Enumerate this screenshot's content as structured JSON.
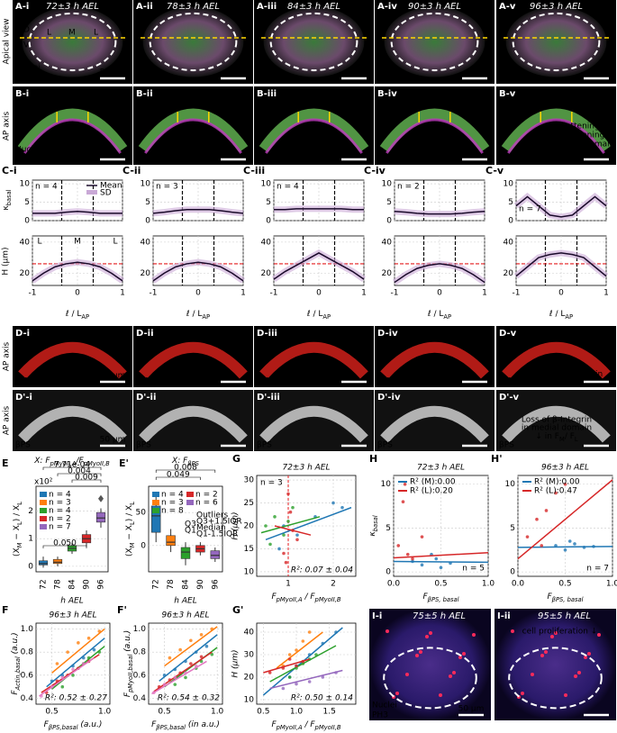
{
  "A": {
    "row_title": "Apical view",
    "stain": [
      "Nuclei",
      "Actin"
    ],
    "scale": "50 µm",
    "axis": [
      "D",
      "V"
    ],
    "regions": [
      "L",
      "M",
      "L"
    ],
    "panels": [
      {
        "label": "A-i",
        "time": "72±3 h AEL",
        "n": "n = 4"
      },
      {
        "label": "A-ii",
        "time": "78±3 h AEL",
        "n": "n = 3"
      },
      {
        "label": "A-iii",
        "time": "84±3 h AEL",
        "n": "n = 4"
      },
      {
        "label": "A-iv",
        "time": "90±3 h AEL",
        "n": "n = 2"
      },
      {
        "label": "A-v",
        "time": "96±3 h AEL",
        "n": "n = 7"
      }
    ]
  },
  "B": {
    "row_title": "AP axis",
    "stain": [
      "Nuclei",
      "Actin"
    ],
    "regions": [
      "L",
      "M",
      "L"
    ],
    "note": [
      "Flattening",
      "& thickening",
      "of medial domain"
    ],
    "panels": [
      "B-i",
      "B-ii",
      "B-iii",
      "B-iv",
      "B-v"
    ]
  },
  "C": {
    "xlabel": [
      "ℓ / L",
      "AP"
    ],
    "k_label": [
      "κ",
      "basal"
    ],
    "h_label": "H (µm)",
    "legend": [
      "Mean",
      "SD"
    ],
    "regions": [
      "L",
      "M",
      "L"
    ],
    "x": [
      -1,
      -0.75,
      -0.5,
      -0.25,
      0,
      0.25,
      0.5,
      0.75,
      1
    ],
    "xlim": [
      -1,
      1
    ],
    "xticks": [
      -1,
      0,
      1
    ],
    "k_ylim": [
      0,
      11
    ],
    "k_yticks": [
      0,
      5,
      10
    ],
    "h_ylim": [
      12,
      44
    ],
    "h_yticks": [
      20,
      40
    ],
    "boundaries": [
      -0.35,
      0.35
    ],
    "h_ref": 26,
    "panels": [
      {
        "label": "C-i",
        "n": "n = 4",
        "k": [
          2,
          2,
          2,
          2.3,
          2.5,
          2.3,
          2,
          2,
          2
        ],
        "h": [
          15,
          20,
          24,
          26,
          27,
          26,
          24,
          20,
          15
        ]
      },
      {
        "label": "C-ii",
        "n": "n = 3",
        "k": [
          2,
          2.3,
          2.7,
          3,
          3,
          3,
          2.7,
          2.3,
          2
        ],
        "h": [
          15,
          20,
          24,
          26,
          27,
          26,
          24,
          20,
          15
        ]
      },
      {
        "label": "C-iii",
        "n": "n = 4",
        "k": [
          3,
          3,
          3.2,
          3.2,
          3.2,
          3.2,
          3.2,
          3,
          3
        ],
        "h": [
          16,
          21,
          25,
          29,
          33,
          29,
          25,
          21,
          16
        ]
      },
      {
        "label": "C-iv",
        "n": "n = 2",
        "k": [
          2.5,
          2.3,
          2,
          1.8,
          1.8,
          1.8,
          2,
          2.3,
          2.5
        ],
        "h": [
          14,
          19,
          23,
          25,
          26,
          25,
          23,
          19,
          14
        ]
      },
      {
        "label": "C-v",
        "n": "n = 7",
        "k": [
          4,
          6.5,
          4,
          1.5,
          1,
          1.5,
          4,
          6.5,
          4
        ],
        "h": [
          18,
          24,
          30,
          32,
          33,
          32,
          30,
          24,
          18
        ]
      }
    ]
  },
  "D": {
    "row_title": "AP axis",
    "stain": "pMyoII",
    "scale": "50 µm",
    "panels": [
      "D-i",
      "D-ii",
      "D-iii",
      "D-iv",
      "D-v"
    ],
    "arrows": [
      "A",
      "B"
    ],
    "note": [
      "↑ in F",
      "A",
      "/F",
      "B",
      "in medial domain"
    ]
  },
  "D2": {
    "row_title": "AP axis",
    "stain": "βPS",
    "scale": "50 µm",
    "panels": [
      "D'-i",
      "D'-ii",
      "D'-iii",
      "D'-iv",
      "D'-v"
    ],
    "note": [
      "Loss of β-Integrin",
      "in medial domain",
      "↓ in F",
      "M",
      "/ F",
      "L"
    ]
  },
  "E": {
    "label": "E",
    "title": [
      "X: F",
      "pMyoII,A",
      "/F",
      "pMyoII,B"
    ],
    "ylabel": [
      "(X",
      "M",
      " − X",
      "L",
      ") / X",
      "L"
    ],
    "xlabel": "h AEL",
    "multiplier": "x10²",
    "categories": [
      "72",
      "78",
      "84",
      "90",
      "96"
    ],
    "ylim": [
      -0.2,
      2.9
    ],
    "yticks": [
      0,
      1,
      2
    ],
    "colors": [
      "#1f77b4",
      "#ff7f0e",
      "#2ca02c",
      "#d62728",
      "#9467bd"
    ],
    "legend": [
      "n = 4",
      "n = 3",
      "n = 4",
      "n = 2",
      "n = 7"
    ],
    "pvalues": [
      "7.71e-04",
      "0.004",
      "0.009",
      "0.050"
    ],
    "boxes": [
      [
        0.05,
        0.1,
        0.2,
        -0.05,
        0.35
      ],
      [
        0.1,
        0.15,
        0.25,
        0,
        0.35
      ],
      [
        0.55,
        0.65,
        0.75,
        0.45,
        0.85
      ],
      [
        0.85,
        1.0,
        1.15,
        0.7,
        1.3
      ],
      [
        1.6,
        1.75,
        1.95,
        1.4,
        2.1
      ]
    ],
    "outliers": [
      null,
      null,
      null,
      null,
      2.45
    ]
  },
  "E2": {
    "label": "E'",
    "title": [
      "X: F",
      "βPS"
    ],
    "ylabel": [
      "(X",
      "M",
      " − X",
      "L",
      ") / X",
      "L"
    ],
    "xlabel": "h AEL",
    "categories": [
      "72",
      "78",
      "84",
      "90",
      "96"
    ],
    "ylim": [
      -40,
      90
    ],
    "yticks": [
      0,
      50
    ],
    "colors": [
      "#1f77b4",
      "#ff7f0e",
      "#2ca02c",
      "#d62728",
      "#9467bd"
    ],
    "legend": [
      "n = 4",
      "n = 3",
      "n = 8",
      "n = 2",
      "n = 6"
    ],
    "pvalues": [
      "0.008",
      "0.049"
    ],
    "stats_legend": [
      "Outliers",
      "Q3+1.5IQR",
      "Median",
      "Q1-1.5IQR"
    ],
    "stats_marks": [
      "Q3",
      "Q1"
    ],
    "boxes": [
      [
        20,
        45,
        60,
        5,
        75
      ],
      [
        0,
        5,
        15,
        -10,
        25
      ],
      [
        -20,
        -10,
        -3,
        -30,
        5
      ],
      [
        -10,
        -5,
        0,
        -15,
        5
      ],
      [
        -20,
        -15,
        -8,
        -25,
        -3
      ]
    ]
  },
  "G": {
    "label": "G",
    "title": "72±3 h AEL",
    "n": "n = 3",
    "xlabel": [
      "F",
      "pMyoII,A",
      " / F",
      "pMyoII,B"
    ],
    "ylabel": "H (µm)",
    "r2": "R²: 0.07 ± 0.04",
    "xlim": [
      0.3,
      2.5
    ],
    "ylim": [
      9,
      31
    ],
    "xticks": [
      1,
      2
    ],
    "yticks": [
      10,
      15,
      20,
      25,
      30
    ],
    "vline": 1,
    "series": [
      {
        "color": "#1f77b4",
        "x": [
          0.8,
          1.2,
          1.6,
          2.0,
          2.2,
          0.9
        ],
        "y": [
          15,
          18,
          22,
          25,
          24,
          20
        ],
        "fit": [
          0.5,
          17,
          2.4,
          24
        ]
      },
      {
        "color": "#2ca02c",
        "x": [
          0.5,
          0.7,
          0.9,
          1.1,
          0.6,
          1.0
        ],
        "y": [
          20,
          22,
          18,
          24,
          16,
          21
        ],
        "fit": [
          0.4,
          18.5,
          1.7,
          22
        ]
      },
      {
        "color": "#d62728",
        "x": [
          0.9,
          1.0,
          1.1,
          1.05,
          0.95,
          1.2
        ],
        "y": [
          14,
          27,
          19,
          23,
          12,
          17
        ],
        "fit": [
          0.7,
          20,
          1.5,
          18
        ]
      }
    ]
  },
  "H": {
    "label": "H",
    "title": "72±3 h AEL",
    "n": "n = 5",
    "legend": [
      "R² (M):0.00",
      "R² (L):0.20"
    ],
    "ylabel": [
      "κ",
      "basal"
    ],
    "xlabel": [
      "F",
      "βPS, basal"
    ],
    "xlim": [
      0,
      1
    ],
    "ylim": [
      -0.5,
      11
    ],
    "xticks": [
      {
        "value": 0,
        "label": "0.0"
      },
      {
        "value": 0.5,
        "label": "0.5"
      },
      {
        "value": 1,
        "label": "1.0"
      }
    ],
    "yticks": [
      0,
      5,
      10
    ],
    "series": [
      {
        "color": "#1f77b4",
        "x": [
          0.2,
          0.3,
          0.45,
          0.6,
          0.4,
          0.5
        ],
        "y": [
          1.2,
          0.8,
          1.5,
          1.0,
          2.0,
          0.5
        ],
        "fit": [
          0,
          1.2,
          1,
          1.1
        ]
      },
      {
        "color": "#d62728",
        "x": [
          0.05,
          0.1,
          0.15,
          0.2,
          0.3,
          0.12
        ],
        "y": [
          3,
          8,
          2,
          1.5,
          4,
          10
        ],
        "fit": [
          0,
          1.6,
          1,
          2.2
        ]
      }
    ]
  },
  "H2": {
    "label": "H'",
    "title": "96±3 h AEL",
    "n": "n = 7",
    "legend": [
      "R² (M):0.00",
      "R² (L):0.47"
    ],
    "xlabel": [
      "F",
      "βPS, basal"
    ],
    "xlim": [
      0,
      1
    ],
    "ylim": [
      -0.5,
      11
    ],
    "xticks": [
      {
        "value": 0,
        "label": "0.0"
      },
      {
        "value": 0.5,
        "label": "0.5"
      },
      {
        "value": 1,
        "label": "1.0"
      }
    ],
    "yticks": [
      0,
      5,
      10
    ],
    "series": [
      {
        "color": "#1f77b4",
        "x": [
          0.4,
          0.5,
          0.6,
          0.7,
          0.55,
          0.8
        ],
        "y": [
          3,
          2.5,
          3.2,
          2.8,
          3.5,
          2.9
        ],
        "fit": [
          0,
          2.8,
          1,
          2.9
        ]
      },
      {
        "color": "#d62728",
        "x": [
          0.1,
          0.2,
          0.3,
          0.4,
          0.5,
          0.25
        ],
        "y": [
          4,
          6,
          7,
          9,
          10,
          3
        ],
        "fit": [
          0,
          1.5,
          1,
          10.5
        ]
      }
    ]
  },
  "F": {
    "label": "F",
    "title": "96±3 h AEL",
    "ylabel": [
      "F",
      "Actin,basal",
      " (a.u.)"
    ],
    "xlabel": [
      "F",
      "βPS,basal",
      " (a.u.)"
    ],
    "r2": "R²: 0.52 ± 0.27",
    "xlim": [
      0.35,
      1.05
    ],
    "ylim": [
      0.35,
      1.05
    ],
    "xticks": [
      0.5,
      {
        "value": 1,
        "label": "1.0"
      }
    ],
    "yticks": [
      0.4,
      0.6,
      0.8,
      {
        "value": 1,
        "label": "1.0"
      }
    ],
    "series": [
      {
        "color": "#1f77b4",
        "x": [
          0.5,
          0.6,
          0.7,
          0.8,
          0.9
        ],
        "y": [
          0.55,
          0.6,
          0.68,
          0.75,
          0.82
        ],
        "fit": [
          0.45,
          0.5,
          1.0,
          0.92
        ]
      },
      {
        "color": "#ff7f0e",
        "x": [
          0.55,
          0.65,
          0.75,
          0.85,
          0.95
        ],
        "y": [
          0.7,
          0.8,
          0.88,
          0.92,
          0.98
        ],
        "fit": [
          0.5,
          0.62,
          1.0,
          1.0
        ]
      },
      {
        "color": "#2ca02c",
        "x": [
          0.6,
          0.7,
          0.8,
          0.85,
          0.95
        ],
        "y": [
          0.5,
          0.6,
          0.7,
          0.75,
          0.8
        ],
        "fit": [
          0.5,
          0.48,
          1.0,
          0.85
        ]
      },
      {
        "color": "#d62728",
        "x": [
          0.45,
          0.55,
          0.65,
          0.75,
          0.85
        ],
        "y": [
          0.45,
          0.55,
          0.6,
          0.66,
          0.72
        ],
        "fit": [
          0.4,
          0.45,
          0.95,
          0.78
        ]
      },
      {
        "color": "#e377c2",
        "x": [
          0.4,
          0.5,
          0.6,
          0.7,
          0.8
        ],
        "y": [
          0.42,
          0.5,
          0.58,
          0.65,
          0.7
        ],
        "fit": [
          0.38,
          0.42,
          0.9,
          0.75
        ]
      }
    ]
  },
  "F2": {
    "label": "F'",
    "title": "96±3 h AEL",
    "ylabel": [
      "F",
      "pMyoII,basal",
      " (a.u.)"
    ],
    "xlabel": [
      "F",
      "βPS,basal",
      " (in a.u.)"
    ],
    "r2": "R²: 0.54 ± 0.32",
    "xlim": [
      0.35,
      1.05
    ],
    "ylim": [
      0.35,
      1.05
    ],
    "xticks": [
      0.5,
      {
        "value": 1,
        "label": "1.0"
      }
    ],
    "yticks": [
      0.4,
      0.6,
      0.8,
      {
        "value": 1,
        "label": "1.0"
      }
    ],
    "series": [
      {
        "color": "#1f77b4",
        "x": [
          0.5,
          0.6,
          0.7,
          0.8,
          0.9
        ],
        "y": [
          0.6,
          0.65,
          0.72,
          0.8,
          0.85
        ],
        "fit": [
          0.45,
          0.55,
          1.0,
          0.95
        ]
      },
      {
        "color": "#ff7f0e",
        "x": [
          0.55,
          0.65,
          0.75,
          0.85,
          0.95
        ],
        "y": [
          0.75,
          0.82,
          0.9,
          0.95,
          1.0
        ],
        "fit": [
          0.5,
          0.68,
          1.0,
          1.02
        ]
      },
      {
        "color": "#2ca02c",
        "x": [
          0.6,
          0.7,
          0.8,
          0.85,
          0.95
        ],
        "y": [
          0.52,
          0.58,
          0.66,
          0.72,
          0.78
        ],
        "fit": [
          0.5,
          0.5,
          1.0,
          0.84
        ]
      },
      {
        "color": "#d62728",
        "x": [
          0.45,
          0.55,
          0.65,
          0.75,
          0.85
        ],
        "y": [
          0.5,
          0.56,
          0.62,
          0.7,
          0.76
        ],
        "fit": [
          0.4,
          0.46,
          0.95,
          0.8
        ]
      },
      {
        "color": "#e377c2",
        "x": [
          0.4,
          0.5,
          0.6,
          0.7,
          0.8
        ],
        "y": [
          0.45,
          0.52,
          0.58,
          0.62,
          0.68
        ],
        "fit": [
          0.38,
          0.44,
          0.9,
          0.72
        ]
      }
    ]
  },
  "G2": {
    "label": "G'",
    "xlabel": [
      "F",
      "pMyoII,A",
      " / F",
      "pMyoII,B"
    ],
    "ylabel": "H (µm)",
    "r2": "R²: 0.50 ± 0.14",
    "xlim": [
      0.4,
      1.9
    ],
    "ylim": [
      8,
      44
    ],
    "xticks": [
      0.5,
      {
        "value": 1,
        "label": "1.0"
      },
      1.5
    ],
    "yticks": [
      10,
      20,
      30,
      40
    ],
    "series": [
      {
        "color": "#1f77b4",
        "x": [
          0.9,
          1.0,
          1.2,
          1.4,
          1.6
        ],
        "y": [
          20,
          25,
          30,
          35,
          40
        ],
        "fit": [
          0.5,
          12,
          1.7,
          42
        ]
      },
      {
        "color": "#ff7f0e",
        "x": [
          0.8,
          0.9,
          1.0,
          1.1,
          1.2
        ],
        "y": [
          25,
          30,
          32,
          36,
          40
        ],
        "fit": [
          0.7,
          24,
          1.4,
          40
        ]
      },
      {
        "color": "#2ca02c",
        "x": [
          0.9,
          1.0,
          1.1,
          1.2,
          1.3
        ],
        "y": [
          20,
          24,
          26,
          28,
          30
        ],
        "fit": [
          0.6,
          18,
          1.6,
          34
        ]
      },
      {
        "color": "#d62728",
        "x": [
          0.6,
          0.8,
          0.9,
          1.0,
          1.1
        ],
        "y": [
          22,
          24,
          28,
          25,
          27
        ],
        "fit": [
          0.5,
          22,
          1.2,
          28
        ]
      },
      {
        "color": "#9467bd",
        "x": [
          0.8,
          1.0,
          1.2,
          1.4,
          1.6
        ],
        "y": [
          15,
          17,
          18,
          20,
          22
        ],
        "fit": [
          0.6,
          15,
          1.7,
          23
        ]
      }
    ]
  },
  "I": {
    "stain": [
      "Nuclei",
      "PH3"
    ],
    "scale": "50 µm",
    "panels": [
      {
        "label": "I-i",
        "time": "75±5 h AEL"
      },
      {
        "label": "I-ii",
        "time": "95±5 h AEL",
        "note": "cell proliferation ↓"
      }
    ]
  }
}
